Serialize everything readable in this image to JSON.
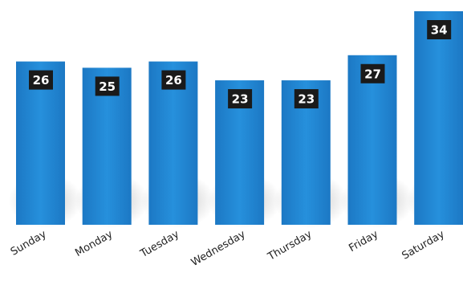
{
  "chart_data": {
    "type": "bar",
    "title": "",
    "xlabel": "",
    "ylabel": "",
    "categories": [
      "Sunday",
      "Monday",
      "Tuesday",
      "Wednesday",
      "Thursday",
      "Friday",
      "Saturday"
    ],
    "series": [
      {
        "values": [
          26,
          25,
          26,
          23,
          23,
          27,
          34
        ]
      }
    ],
    "data_labels": [
      "26",
      "25",
      "26",
      "23",
      "23",
      "27",
      "34"
    ],
    "ylim": [
      0,
      34
    ],
    "grid": false,
    "legend": "none",
    "colors": {
      "bar": "#2185d3",
      "label_box": "#1a1a1a",
      "label_text": "#ffffff",
      "tick_text": "#222222"
    }
  }
}
